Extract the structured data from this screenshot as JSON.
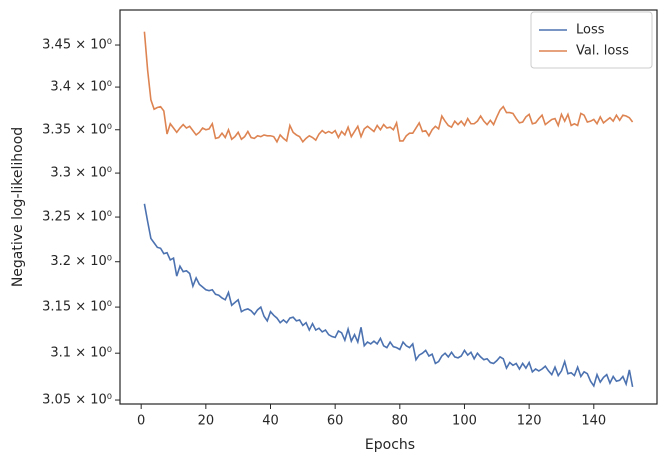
{
  "chart_data": {
    "type": "line",
    "xlabel": "Epochs",
    "ylabel": "Negative log-likelihood",
    "log_y": true,
    "grid": false,
    "legend": "upper right",
    "xlim": [
      -6.55,
      159.55
    ],
    "xticks": [
      0,
      20,
      40,
      60,
      80,
      100,
      120,
      140
    ],
    "ylim": [
      3.0458,
      3.4922
    ],
    "yticks": [
      {
        "value": 3.05,
        "label": "3.05 × 10⁰"
      },
      {
        "value": 3.1,
        "label": "3.1 × 10⁰"
      },
      {
        "value": 3.15,
        "label": "3.15 × 10⁰"
      },
      {
        "value": 3.2,
        "label": "3.2 × 10⁰"
      },
      {
        "value": 3.25,
        "label": "3.25 × 10⁰"
      },
      {
        "value": 3.3,
        "label": "3.3 × 10⁰"
      },
      {
        "value": 3.35,
        "label": "3.35 × 10⁰"
      },
      {
        "value": 3.4,
        "label": "3.4 × 10⁰"
      },
      {
        "value": 3.45,
        "label": "3.45 × 10⁰"
      }
    ],
    "x": [
      1,
      2,
      3,
      4,
      5,
      6,
      7,
      8,
      9,
      10,
      11,
      12,
      13,
      14,
      15,
      16,
      17,
      18,
      19,
      20,
      21,
      22,
      23,
      24,
      25,
      26,
      27,
      28,
      29,
      30,
      31,
      32,
      33,
      34,
      35,
      36,
      37,
      38,
      39,
      40,
      41,
      42,
      43,
      44,
      45,
      46,
      47,
      48,
      49,
      50,
      51,
      52,
      53,
      54,
      55,
      56,
      57,
      58,
      59,
      60,
      61,
      62,
      63,
      64,
      65,
      66,
      67,
      68,
      69,
      70,
      71,
      72,
      73,
      74,
      75,
      76,
      77,
      78,
      79,
      80,
      81,
      82,
      83,
      84,
      85,
      86,
      87,
      88,
      89,
      90,
      91,
      92,
      93,
      94,
      95,
      96,
      97,
      98,
      99,
      100,
      101,
      102,
      103,
      104,
      105,
      106,
      107,
      108,
      109,
      110,
      111,
      112,
      113,
      114,
      115,
      116,
      117,
      118,
      119,
      120,
      121,
      122,
      123,
      124,
      125,
      126,
      127,
      128,
      129,
      130,
      131,
      132,
      133,
      134,
      135,
      136,
      137,
      138,
      139,
      140,
      141,
      142,
      143,
      144,
      145,
      146,
      147,
      148,
      149,
      150,
      151,
      152
    ],
    "series": [
      {
        "name": "Loss",
        "color": "#4c72b0",
        "values": [
          3.265,
          3.245,
          3.226,
          3.221,
          3.216,
          3.215,
          3.209,
          3.21,
          3.202,
          3.204,
          3.184,
          3.195,
          3.189,
          3.19,
          3.187,
          3.173,
          3.182,
          3.175,
          3.172,
          3.169,
          3.168,
          3.169,
          3.164,
          3.163,
          3.16,
          3.158,
          3.166,
          3.152,
          3.155,
          3.158,
          3.145,
          3.147,
          3.148,
          3.146,
          3.142,
          3.147,
          3.15,
          3.14,
          3.135,
          3.145,
          3.141,
          3.138,
          3.133,
          3.136,
          3.133,
          3.138,
          3.139,
          3.135,
          3.136,
          3.13,
          3.133,
          3.125,
          3.132,
          3.125,
          3.127,
          3.123,
          3.125,
          3.12,
          3.118,
          3.117,
          3.124,
          3.122,
          3.114,
          3.126,
          3.113,
          3.12,
          3.112,
          3.128,
          3.108,
          3.112,
          3.11,
          3.113,
          3.11,
          3.116,
          3.108,
          3.106,
          3.112,
          3.107,
          3.106,
          3.104,
          3.112,
          3.108,
          3.106,
          3.11,
          3.093,
          3.098,
          3.1,
          3.103,
          3.097,
          3.099,
          3.089,
          3.091,
          3.097,
          3.1,
          3.096,
          3.101,
          3.096,
          3.095,
          3.097,
          3.103,
          3.098,
          3.101,
          3.094,
          3.1,
          3.096,
          3.093,
          3.094,
          3.09,
          3.089,
          3.092,
          3.096,
          3.094,
          3.084,
          3.09,
          3.087,
          3.089,
          3.083,
          3.089,
          3.084,
          3.09,
          3.08,
          3.083,
          3.081,
          3.083,
          3.086,
          3.081,
          3.077,
          3.085,
          3.076,
          3.081,
          3.091,
          3.078,
          3.079,
          3.076,
          3.085,
          3.075,
          3.08,
          3.078,
          3.07,
          3.065,
          3.077,
          3.069,
          3.074,
          3.077,
          3.068,
          3.075,
          3.07,
          3.071,
          3.075,
          3.067,
          3.082,
          3.064
        ]
      },
      {
        "name": "Val. loss",
        "color": "#dd8452",
        "values": [
          3.466,
          3.42,
          3.385,
          3.374,
          3.376,
          3.377,
          3.372,
          3.345,
          3.357,
          3.352,
          3.347,
          3.352,
          3.356,
          3.352,
          3.354,
          3.349,
          3.344,
          3.347,
          3.352,
          3.35,
          3.351,
          3.357,
          3.34,
          3.341,
          3.346,
          3.341,
          3.35,
          3.339,
          3.342,
          3.347,
          3.339,
          3.342,
          3.348,
          3.341,
          3.34,
          3.343,
          3.342,
          3.344,
          3.343,
          3.343,
          3.342,
          3.336,
          3.344,
          3.34,
          3.337,
          3.355,
          3.347,
          3.344,
          3.342,
          3.336,
          3.34,
          3.343,
          3.341,
          3.338,
          3.345,
          3.349,
          3.346,
          3.348,
          3.346,
          3.349,
          3.341,
          3.348,
          3.344,
          3.353,
          3.342,
          3.348,
          3.354,
          3.342,
          3.351,
          3.354,
          3.351,
          3.348,
          3.355,
          3.35,
          3.356,
          3.352,
          3.353,
          3.35,
          3.358,
          3.337,
          3.337,
          3.343,
          3.346,
          3.346,
          3.352,
          3.358,
          3.348,
          3.349,
          3.343,
          3.35,
          3.354,
          3.351,
          3.366,
          3.36,
          3.355,
          3.353,
          3.36,
          3.356,
          3.36,
          3.355,
          3.363,
          3.357,
          3.357,
          3.36,
          3.366,
          3.36,
          3.356,
          3.361,
          3.356,
          3.365,
          3.373,
          3.377,
          3.37,
          3.37,
          3.369,
          3.363,
          3.358,
          3.359,
          3.365,
          3.368,
          3.357,
          3.358,
          3.363,
          3.367,
          3.356,
          3.359,
          3.362,
          3.363,
          3.355,
          3.368,
          3.36,
          3.368,
          3.355,
          3.357,
          3.355,
          3.369,
          3.367,
          3.359,
          3.36,
          3.362,
          3.357,
          3.365,
          3.358,
          3.361,
          3.364,
          3.36,
          3.367,
          3.361,
          3.367,
          3.366,
          3.364,
          3.359
        ]
      }
    ]
  }
}
